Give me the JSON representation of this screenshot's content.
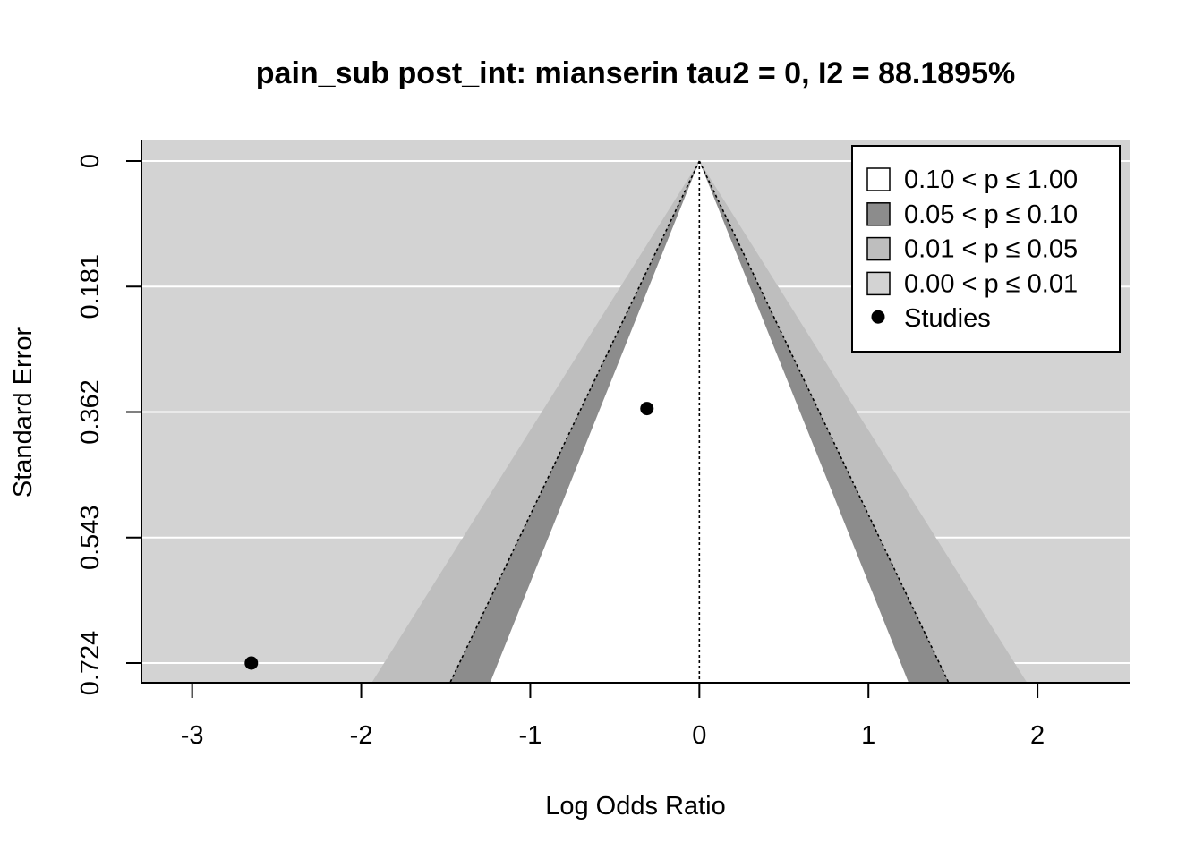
{
  "chart_data": {
    "type": "scatter",
    "subtype": "contour-enhanced funnel plot",
    "title": "pain_sub post_int: mianserin tau2 = 0, I2 = 88.1895%",
    "xlabel": "Log Odds Ratio",
    "ylabel": "Standard Error",
    "xlim": [
      -3.3,
      2.55
    ],
    "ylim": [
      0.724,
      0
    ],
    "y_reversed": true,
    "x_ticks": [
      "-3",
      "-2",
      "-1",
      "0",
      "1",
      "2"
    ],
    "y_ticks": [
      "0",
      "0.181",
      "0.362",
      "0.543",
      "0.724"
    ],
    "grid": "horizontal",
    "center_estimate": 0,
    "contour_levels": [
      0.1,
      0.05,
      0.01
    ],
    "legend": {
      "position": "top-right",
      "entries": [
        {
          "label": "0.10 < p ≤ 1.00",
          "color": "#ffffff"
        },
        {
          "label": "0.05 < p ≤ 0.10",
          "color": "#8c8c8c"
        },
        {
          "label": "0.01 < p ≤ 0.05",
          "color": "#bebebe"
        },
        {
          "label": "0.00 < p ≤ 0.01",
          "color": "#d3d3d3"
        },
        {
          "label": "Studies",
          "marker": "circle"
        }
      ]
    },
    "studies": [
      {
        "x": -0.31,
        "y": 0.357
      },
      {
        "x": -2.65,
        "y": 0.724
      }
    ],
    "colors": {
      "background": "#d3d3d3",
      "p001": "#bebebe",
      "p005": "#8c8c8c",
      "p010": "#ffffff"
    }
  }
}
